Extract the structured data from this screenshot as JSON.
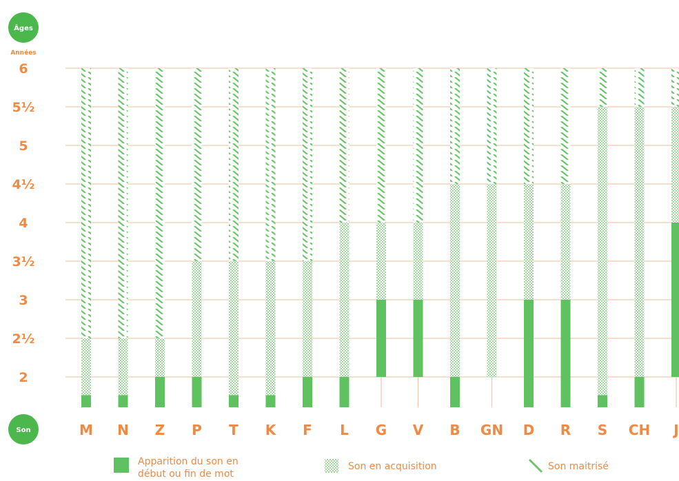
{
  "chart_data": {
    "type": "bar",
    "y_badge": "Âges",
    "y_unit": "Années",
    "x_badge": "Son",
    "y_ticks": [
      "6",
      "5½",
      "5",
      "4½",
      "4",
      "3½",
      "3",
      "2½",
      "2"
    ],
    "categories": [
      "M",
      "N",
      "Z",
      "P",
      "T",
      "K",
      "F",
      "L",
      "G",
      "V",
      "B",
      "GN",
      "D",
      "R",
      "S",
      "CH",
      "J"
    ],
    "bars": [
      {
        "sound": "M",
        "apparition": [
          1.5,
          1.7
        ],
        "acquisition": [
          1.7,
          2.5
        ],
        "maitrise": [
          2.5,
          6
        ]
      },
      {
        "sound": "N",
        "apparition": [
          1.5,
          1.7
        ],
        "acquisition": [
          1.7,
          2.5
        ],
        "maitrise": [
          2.5,
          6
        ]
      },
      {
        "sound": "Z",
        "apparition": [
          1.5,
          2
        ],
        "acquisition": [
          2,
          2.5
        ],
        "maitrise": [
          2.5,
          6
        ]
      },
      {
        "sound": "P",
        "apparition": [
          1.5,
          2
        ],
        "acquisition": [
          2,
          3.5
        ],
        "maitrise": [
          3.5,
          6
        ]
      },
      {
        "sound": "T",
        "apparition": [
          1.5,
          1.7
        ],
        "acquisition": [
          1.7,
          3.5
        ],
        "maitrise": [
          3.5,
          6
        ]
      },
      {
        "sound": "K",
        "apparition": [
          1.5,
          1.7
        ],
        "acquisition": [
          1.7,
          3.5
        ],
        "maitrise": [
          3.5,
          6
        ]
      },
      {
        "sound": "F",
        "apparition": [
          1.5,
          2
        ],
        "acquisition": [
          2,
          3.5
        ],
        "maitrise": [
          3.5,
          6
        ]
      },
      {
        "sound": "L",
        "apparition": [
          1.5,
          2
        ],
        "acquisition": [
          2,
          4
        ],
        "maitrise": [
          4,
          6
        ]
      },
      {
        "sound": "G",
        "apparition": [
          2,
          3
        ],
        "acquisition": [
          3,
          4
        ],
        "maitrise": [
          4,
          6
        ]
      },
      {
        "sound": "V",
        "apparition": [
          2,
          3
        ],
        "acquisition": [
          3,
          4
        ],
        "maitrise": [
          4,
          6
        ]
      },
      {
        "sound": "B",
        "apparition": [
          1.5,
          2
        ],
        "acquisition": [
          2,
          4.5
        ],
        "maitrise": [
          4.5,
          6
        ]
      },
      {
        "sound": "GN",
        "apparition": null,
        "acquisition": [
          2,
          4.5
        ],
        "maitrise": [
          4.5,
          6
        ]
      },
      {
        "sound": "D",
        "apparition": [
          1.5,
          3
        ],
        "acquisition": [
          3,
          4.5
        ],
        "maitrise": [
          4.5,
          6
        ]
      },
      {
        "sound": "R",
        "apparition": [
          1.5,
          3
        ],
        "acquisition": [
          3,
          4.5
        ],
        "maitrise": [
          4.5,
          6
        ]
      },
      {
        "sound": "S",
        "apparition": [
          1.5,
          1.7
        ],
        "acquisition": [
          1.7,
          5.5
        ],
        "maitrise": [
          5.5,
          6
        ]
      },
      {
        "sound": "CH",
        "apparition": [
          1.5,
          2
        ],
        "acquisition": [
          2,
          5.5
        ],
        "maitrise": [
          5.5,
          6
        ]
      },
      {
        "sound": "J",
        "apparition": [
          2,
          4
        ],
        "acquisition": [
          4,
          5.5
        ],
        "maitrise": [
          5.5,
          6
        ]
      }
    ],
    "legend": [
      {
        "key": "apparition",
        "lines": [
          "Apparition du son en",
          "début ou fin de mot"
        ]
      },
      {
        "key": "acquisition",
        "lines": [
          "Son en acquisition"
        ]
      },
      {
        "key": "maitrise",
        "lines": [
          "Son maitrisé"
        ]
      }
    ],
    "ylim": [
      1.5,
      6
    ],
    "legend_position": "bottom",
    "grid": true,
    "colors": {
      "green": "#5fc15f",
      "orange": "#ee8a44",
      "grid": "#f6c9ae",
      "badge": "#4cb74c"
    }
  }
}
